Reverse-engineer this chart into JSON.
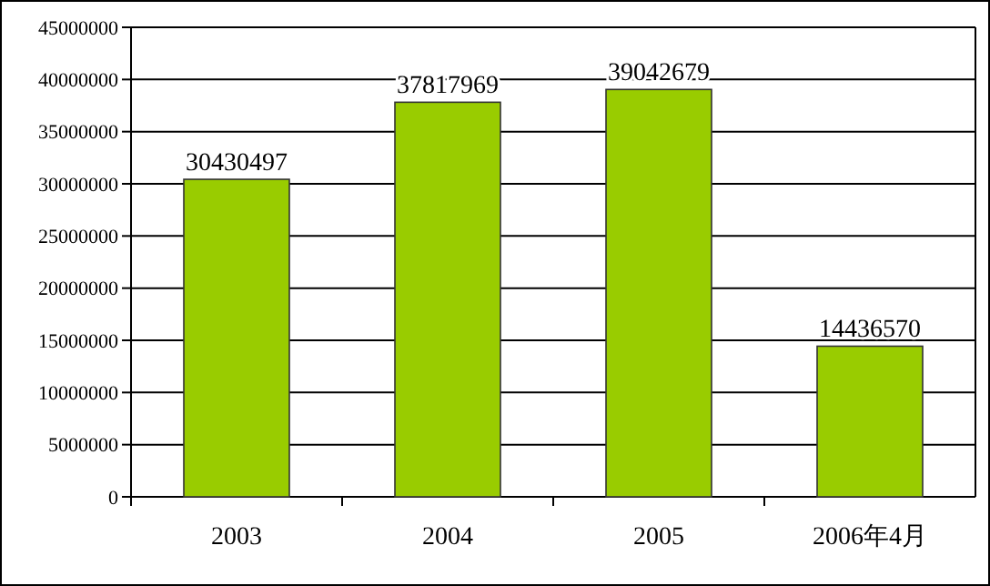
{
  "chart_data": {
    "type": "bar",
    "categories": [
      "2003",
      "2004",
      "2005",
      "2006年4月"
    ],
    "values": [
      30430497,
      37817969,
      39042679,
      14436570
    ],
    "color": "#99cc00",
    "ylim": [
      0,
      45000000
    ],
    "yticks": [
      0,
      5000000,
      10000000,
      15000000,
      20000000,
      25000000,
      30000000,
      35000000,
      40000000,
      45000000
    ],
    "grid": "y",
    "data_labels": true
  }
}
